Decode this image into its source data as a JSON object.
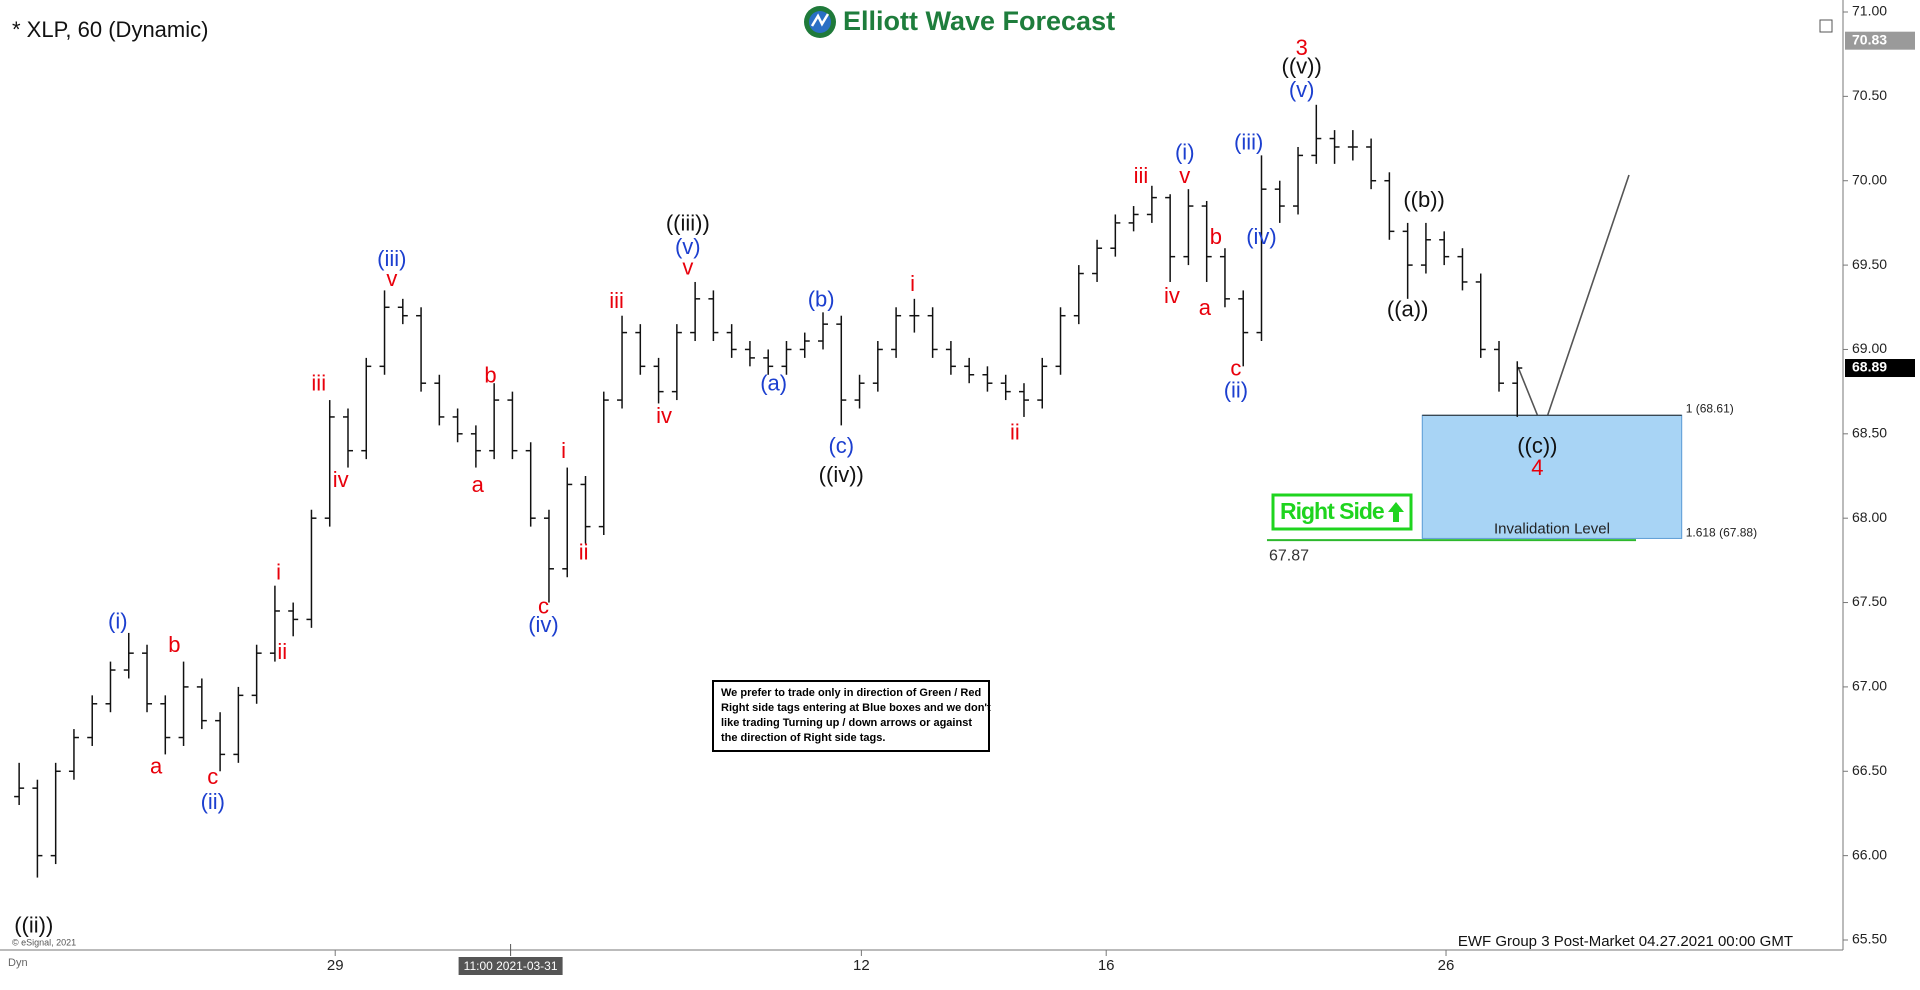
{
  "chart_data": {
    "type": "ohlc",
    "title": "* XLP, 60 (Dynamic)",
    "logo": "Elliott Wave Forecast",
    "footer": "EWF Group 3 Post-Market 04.27.2021 00:00 GMT",
    "source": "© eSignal, 2021",
    "mode_label": "Dyn",
    "crosshair_label": "11:00 2021-03-31",
    "color": "#111111",
    "open": [
      66.35,
      66.4,
      66.0,
      66.5,
      66.7,
      66.9,
      67.1,
      67.2,
      66.9,
      66.7,
      67.0,
      66.8,
      66.6,
      66.95,
      67.2,
      67.45,
      67.4,
      68.0,
      68.6,
      68.4,
      68.9,
      69.25,
      69.2,
      68.8,
      68.6,
      68.5,
      68.4,
      68.7,
      68.4,
      68.0,
      67.7,
      68.2,
      67.95,
      68.7,
      69.1,
      68.9,
      68.75,
      69.1,
      69.3,
      69.1,
      69.0,
      68.95,
      68.9,
      69.0,
      69.05,
      69.15,
      68.7,
      68.8,
      69.0,
      69.2,
      69.2,
      69.0,
      68.9,
      68.85,
      68.8,
      68.75,
      68.7,
      68.9,
      69.2,
      69.45,
      69.6,
      69.75,
      69.8,
      69.9,
      69.55,
      69.85,
      69.55,
      69.3,
      69.1,
      69.95,
      69.85,
      70.15,
      70.25,
      70.2,
      70.2,
      70.0,
      69.7,
      69.5,
      69.65,
      69.55,
      69.4,
      69.0,
      68.8
    ],
    "high": [
      66.55,
      66.45,
      66.55,
      66.75,
      66.95,
      67.15,
      67.32,
      67.25,
      66.95,
      67.15,
      67.05,
      66.85,
      67.0,
      67.25,
      67.6,
      67.5,
      68.05,
      68.7,
      68.65,
      68.95,
      69.35,
      69.3,
      69.25,
      68.85,
      68.65,
      68.55,
      68.8,
      68.75,
      68.45,
      68.05,
      68.3,
      68.25,
      68.75,
      69.2,
      69.15,
      68.95,
      69.15,
      69.4,
      69.35,
      69.15,
      69.05,
      69.0,
      69.05,
      69.1,
      69.22,
      69.2,
      68.85,
      69.05,
      69.25,
      69.3,
      69.25,
      69.05,
      68.95,
      68.9,
      68.85,
      68.8,
      68.95,
      69.25,
      69.5,
      69.65,
      69.8,
      69.85,
      69.97,
      69.92,
      69.95,
      69.88,
      69.6,
      69.35,
      70.15,
      70.0,
      70.2,
      70.45,
      70.3,
      70.3,
      70.25,
      70.05,
      69.75,
      69.75,
      69.7,
      69.6,
      69.45,
      69.05,
      68.93
    ],
    "low": [
      66.3,
      65.87,
      65.95,
      66.45,
      66.65,
      66.85,
      67.05,
      66.85,
      66.6,
      66.65,
      66.75,
      66.5,
      66.55,
      66.9,
      67.15,
      67.3,
      67.35,
      67.95,
      68.3,
      68.35,
      68.85,
      69.15,
      68.75,
      68.55,
      68.45,
      68.3,
      68.35,
      68.35,
      67.95,
      67.5,
      67.65,
      67.85,
      67.9,
      68.65,
      68.85,
      68.68,
      68.7,
      69.05,
      69.05,
      68.95,
      68.9,
      68.85,
      68.85,
      68.95,
      69.0,
      68.55,
      68.65,
      68.75,
      68.95,
      69.1,
      68.95,
      68.85,
      68.8,
      68.75,
      68.7,
      68.6,
      68.65,
      68.85,
      69.15,
      69.4,
      69.55,
      69.7,
      69.75,
      69.4,
      69.5,
      69.4,
      69.25,
      68.9,
      69.05,
      69.75,
      69.8,
      70.1,
      70.1,
      70.12,
      69.95,
      69.65,
      69.3,
      69.45,
      69.5,
      69.35,
      68.95,
      68.75,
      68.6
    ],
    "close": [
      66.4,
      66.0,
      66.5,
      66.7,
      66.9,
      67.1,
      67.2,
      66.9,
      66.7,
      67.0,
      66.8,
      66.6,
      66.95,
      67.2,
      67.45,
      67.4,
      68.0,
      68.6,
      68.4,
      68.9,
      69.25,
      69.2,
      68.8,
      68.6,
      68.5,
      68.4,
      68.7,
      68.4,
      68.0,
      67.7,
      68.2,
      67.95,
      68.7,
      69.1,
      68.9,
      68.75,
      69.1,
      69.3,
      69.1,
      69.0,
      68.95,
      68.9,
      69.0,
      69.05,
      69.15,
      68.7,
      68.8,
      69.0,
      69.2,
      69.2,
      69.0,
      68.9,
      68.85,
      68.8,
      68.75,
      68.7,
      68.9,
      69.2,
      69.45,
      69.6,
      69.75,
      69.8,
      69.9,
      69.55,
      69.85,
      69.55,
      69.3,
      69.1,
      69.95,
      69.85,
      70.15,
      70.25,
      70.2,
      70.2,
      70.0,
      69.7,
      69.5,
      69.65,
      69.55,
      69.4,
      69.0,
      68.8,
      68.89
    ],
    "xlim": [
      0,
      100
    ],
    "xticks": [
      {
        "value": 17.8,
        "label": "29"
      },
      {
        "value": 46.6,
        "label": "12"
      },
      {
        "value": 60,
        "label": "16"
      },
      {
        "value": 78.6,
        "label": "26"
      }
    ],
    "crosshair_x": 27.4,
    "ylim": [
      65.5,
      71.0
    ],
    "yticks": [
      {
        "value": 65.5,
        "label": "65.50"
      },
      {
        "value": 66.0,
        "label": "66.00"
      },
      {
        "value": 66.5,
        "label": "66.50"
      },
      {
        "value": 67.0,
        "label": "67.00"
      },
      {
        "value": 67.5,
        "label": "67.50"
      },
      {
        "value": 68.0,
        "label": "68.00"
      },
      {
        "value": 68.5,
        "label": "68.50"
      },
      {
        "value": 69.0,
        "label": "69.00"
      },
      {
        "value": 69.5,
        "label": "69.50"
      },
      {
        "value": 70.0,
        "label": "70.00"
      },
      {
        "value": 70.5,
        "label": "70.50"
      },
      {
        "value": 71.0,
        "label": "71.00"
      }
    ],
    "price_markers": [
      {
        "value": 68.89,
        "label": "68.89",
        "color": "#000000"
      },
      {
        "value": 70.83,
        "label": "70.83",
        "color": "#9a9a9a"
      }
    ],
    "zone": {
      "top": 68.61,
      "bottom": 67.88,
      "x": [
        77.3,
        91.5
      ],
      "color": "#a8d4f5",
      "top_label": "1 (68.61)",
      "bottom_label": "1.618 (67.88)",
      "label": "Invalidation Level"
    },
    "invalidation": {
      "value": 67.87,
      "label": "67.87",
      "x": [
        68.8,
        89.0
      ],
      "color": "#2db82d"
    },
    "tag": {
      "label": "Right Side",
      "color": "#1fd41f"
    },
    "note": [
      "We prefer to trade only in direction of Green / Red",
      "Right side tags entering at Blue boxes and we don't",
      "like trading Turning up / down arrows or against",
      "the direction of Right side tags."
    ],
    "annotations": [
      {
        "text": "((ii))",
        "color": "#111111",
        "x": 1.3,
        "y": 65.58
      },
      {
        "text": "(i)",
        "color": "#1c3fcf",
        "x": 5.9,
        "y": 67.38
      },
      {
        "text": "b",
        "color": "#e8000b",
        "x": 9.0,
        "y": 67.24
      },
      {
        "text": "a",
        "color": "#e8000b",
        "x": 8.0,
        "y": 66.52
      },
      {
        "text": "c",
        "color": "#e8000b",
        "x": 11.1,
        "y": 66.46
      },
      {
        "text": "(ii)",
        "color": "#1c3fcf",
        "x": 11.1,
        "y": 66.31
      },
      {
        "text": "i",
        "color": "#e8000b",
        "x": 14.7,
        "y": 67.67
      },
      {
        "text": "ii",
        "color": "#e8000b",
        "x": 14.9,
        "y": 67.2
      },
      {
        "text": "iii",
        "color": "#e8000b",
        "x": 16.9,
        "y": 68.79
      },
      {
        "text": "iv",
        "color": "#e8000b",
        "x": 18.1,
        "y": 68.22
      },
      {
        "text": "(iii)",
        "color": "#1c3fcf",
        "x": 20.9,
        "y": 69.53
      },
      {
        "text": "v",
        "color": "#e8000b",
        "x": 20.9,
        "y": 69.41
      },
      {
        "text": "b",
        "color": "#e8000b",
        "x": 26.3,
        "y": 68.84
      },
      {
        "text": "a",
        "color": "#e8000b",
        "x": 25.6,
        "y": 68.19
      },
      {
        "text": "c",
        "color": "#e8000b",
        "x": 29.2,
        "y": 67.47
      },
      {
        "text": "(iv)",
        "color": "#1c3fcf",
        "x": 29.2,
        "y": 67.36
      },
      {
        "text": "i",
        "color": "#e8000b",
        "x": 30.3,
        "y": 68.39
      },
      {
        "text": "ii",
        "color": "#e8000b",
        "x": 31.4,
        "y": 67.79
      },
      {
        "text": "iii",
        "color": "#e8000b",
        "x": 33.2,
        "y": 69.28
      },
      {
        "text": "iv",
        "color": "#e8000b",
        "x": 35.8,
        "y": 68.6
      },
      {
        "text": "((iii))",
        "color": "#111111",
        "x": 37.1,
        "y": 69.74
      },
      {
        "text": "(v)",
        "color": "#1c3fcf",
        "x": 37.1,
        "y": 69.6
      },
      {
        "text": "v",
        "color": "#e8000b",
        "x": 37.1,
        "y": 69.48
      },
      {
        "text": "(a)",
        "color": "#1c3fcf",
        "x": 41.8,
        "y": 68.79
      },
      {
        "text": "(b)",
        "color": "#1c3fcf",
        "x": 44.4,
        "y": 69.29
      },
      {
        "text": "(c)",
        "color": "#1c3fcf",
        "x": 45.5,
        "y": 68.42
      },
      {
        "text": "((iv))",
        "color": "#111111",
        "x": 45.5,
        "y": 68.25
      },
      {
        "text": "i",
        "color": "#e8000b",
        "x": 49.4,
        "y": 69.38
      },
      {
        "text": "ii",
        "color": "#e8000b",
        "x": 55.0,
        "y": 68.5
      },
      {
        "text": "iii",
        "color": "#e8000b",
        "x": 61.9,
        "y": 70.02
      },
      {
        "text": "iv",
        "color": "#e8000b",
        "x": 63.6,
        "y": 69.31
      },
      {
        "text": "(i)",
        "color": "#1c3fcf",
        "x": 64.3,
        "y": 70.16
      },
      {
        "text": "v",
        "color": "#e8000b",
        "x": 64.3,
        "y": 70.02
      },
      {
        "text": "b",
        "color": "#e8000b",
        "x": 66.0,
        "y": 69.66
      },
      {
        "text": "a",
        "color": "#e8000b",
        "x": 65.4,
        "y": 69.24
      },
      {
        "text": "c",
        "color": "#e8000b",
        "x": 67.1,
        "y": 68.88
      },
      {
        "text": "(ii)",
        "color": "#1c3fcf",
        "x": 67.1,
        "y": 68.75
      },
      {
        "text": "(iii)",
        "color": "#1c3fcf",
        "x": 67.8,
        "y": 70.22
      },
      {
        "text": "(iv)",
        "color": "#1c3fcf",
        "x": 68.5,
        "y": 69.66
      },
      {
        "text": "3",
        "color": "#e8000b",
        "x": 70.7,
        "y": 70.78
      },
      {
        "text": "((v))",
        "color": "#111111",
        "x": 70.7,
        "y": 70.67
      },
      {
        "text": "(v)",
        "color": "#1c3fcf",
        "x": 70.7,
        "y": 70.53
      },
      {
        "text": "((b))",
        "color": "#111111",
        "x": 77.4,
        "y": 69.88
      },
      {
        "text": "((a))",
        "color": "#111111",
        "x": 76.5,
        "y": 69.23
      },
      {
        "text": "((c))",
        "color": "#111111",
        "x": 83.6,
        "y": 68.42
      },
      {
        "text": "4",
        "color": "#e8000b",
        "x": 83.6,
        "y": 68.29
      }
    ]
  }
}
